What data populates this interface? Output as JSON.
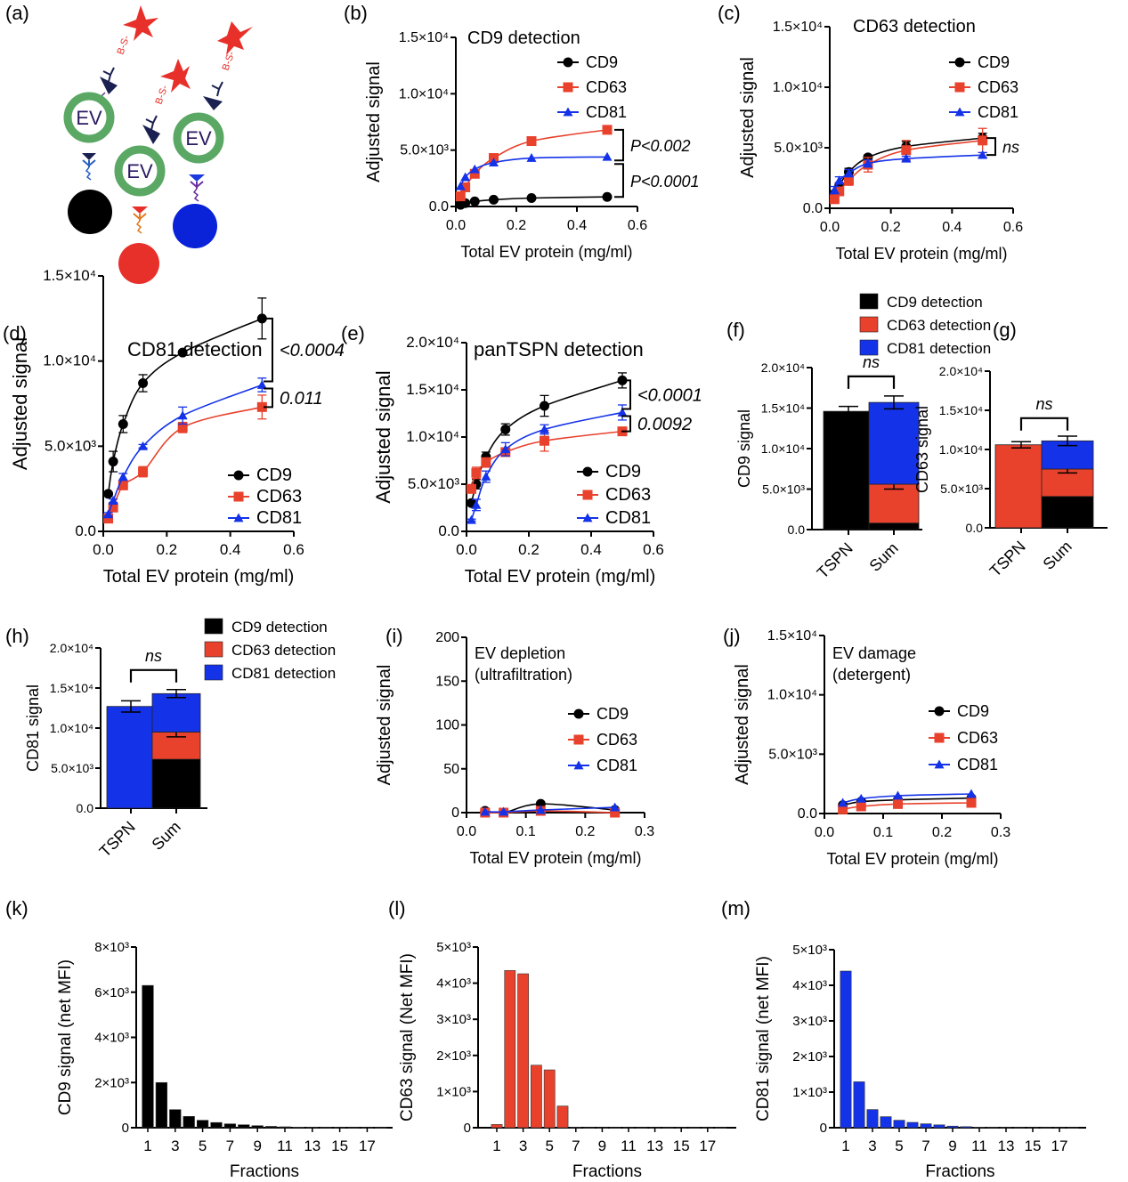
{
  "colors": {
    "cd9": "#000000",
    "cd63": "#e8412c",
    "cd81": "#1432e8",
    "ev_ring": "#5aa864",
    "star": "#e8302a",
    "antibody": "#1a2050"
  },
  "panel_labels": [
    "(a)",
    "(b)",
    "(c)",
    "(d)",
    "(e)",
    "(f)",
    "(g)",
    "(h)",
    "(i)",
    "(j)",
    "(k)",
    "(l)",
    "(m)"
  ],
  "schematic": {
    "ev_label": "EV",
    "linker_label": "B-S-",
    "bead_colors": [
      "#000000",
      "#e8302a",
      "#0a22d8"
    ]
  },
  "chart_data": [
    {
      "id": "b",
      "type": "line",
      "title": "CD9 detection",
      "xlabel": "Total EV protein (mg/ml)",
      "ylabel": "Adjusted signal",
      "xlim": [
        0,
        0.6
      ],
      "ylim": [
        0,
        15000
      ],
      "xticks": [
        "0.0",
        "0.2",
        "0.4",
        "0.6"
      ],
      "yticks": [
        "0.0",
        "5.0×10³",
        "1.0×10⁴",
        "1.5×10⁴"
      ],
      "legend": [
        "CD9",
        "CD63",
        "CD81"
      ],
      "legend_position": "top-right",
      "annotations": [
        "P<0.002",
        "P<0.0001"
      ],
      "series": [
        {
          "name": "CD9",
          "x": [
            0.0156,
            0.03125,
            0.0625,
            0.125,
            0.25,
            0.5
          ],
          "y": [
            150,
            300,
            450,
            600,
            750,
            850
          ]
        },
        {
          "name": "CD63",
          "x": [
            0.0156,
            0.03125,
            0.0625,
            0.125,
            0.25,
            0.5
          ],
          "y": [
            900,
            1700,
            2900,
            4300,
            5800,
            6800
          ]
        },
        {
          "name": "CD81",
          "x": [
            0.0156,
            0.03125,
            0.0625,
            0.125,
            0.25,
            0.5
          ],
          "y": [
            1800,
            2600,
            3300,
            3900,
            4300,
            4400
          ]
        }
      ]
    },
    {
      "id": "c",
      "type": "line",
      "title": "CD63 detection",
      "xlabel": "Total EV protein (mg/ml)",
      "ylabel": "Adjusted signal",
      "xlim": [
        0,
        0.6
      ],
      "ylim": [
        0,
        15000
      ],
      "xticks": [
        "0.0",
        "0.2",
        "0.4",
        "0.6"
      ],
      "yticks": [
        "0.0",
        "5.0×10³",
        "1.0×10⁴",
        "1.5×10⁴"
      ],
      "legend": [
        "CD9",
        "CD63",
        "CD81"
      ],
      "legend_position": "top-right",
      "annotations": [
        "ns"
      ],
      "series": [
        {
          "name": "CD9",
          "x": [
            0.0156,
            0.03125,
            0.0625,
            0.125,
            0.25,
            0.5
          ],
          "y": [
            1200,
            1900,
            3000,
            4200,
            5100,
            5800
          ],
          "err": [
            200,
            200,
            300,
            200,
            400,
            400
          ]
        },
        {
          "name": "CD63",
          "x": [
            0.0156,
            0.03125,
            0.0625,
            0.125,
            0.25,
            0.5
          ],
          "y": [
            750,
            1400,
            2300,
            3600,
            4800,
            5600
          ],
          "err": [
            300,
            300,
            400,
            600,
            800,
            1000
          ]
        },
        {
          "name": "CD81",
          "x": [
            0.0156,
            0.03125,
            0.0625,
            0.125,
            0.25,
            0.5
          ],
          "y": [
            1500,
            2300,
            2900,
            3700,
            4100,
            4400
          ],
          "err": [
            300,
            300,
            300,
            300,
            200,
            200
          ]
        }
      ]
    },
    {
      "id": "d",
      "type": "line",
      "title": "CD81 detection",
      "xlabel": "Total EV protein (mg/ml)",
      "ylabel": "Adjusted signal",
      "xlim": [
        0,
        0.6
      ],
      "ylim": [
        0,
        15000
      ],
      "xticks": [
        "0.0",
        "0.2",
        "0.4",
        "0.6"
      ],
      "yticks": [
        "0.0",
        "5.0×10³",
        "1.0×10⁴",
        "1.5×10⁴"
      ],
      "legend": [
        "CD9",
        "CD63",
        "CD81"
      ],
      "legend_position": "bottom-right",
      "annotations": [
        "<0.0004",
        "0.011"
      ],
      "series": [
        {
          "name": "CD9",
          "x": [
            0.0156,
            0.03125,
            0.0625,
            0.125,
            0.25,
            0.5
          ],
          "y": [
            2200,
            4100,
            6300,
            8700,
            10500,
            12500
          ],
          "err": [
            100,
            600,
            500,
            500,
            100,
            1200
          ]
        },
        {
          "name": "CD63",
          "x": [
            0.0156,
            0.03125,
            0.0625,
            0.125,
            0.25,
            0.5
          ],
          "y": [
            750,
            1400,
            2700,
            3500,
            6100,
            7300
          ],
          "err": [
            100,
            200,
            200,
            300,
            300,
            700
          ]
        },
        {
          "name": "CD81",
          "x": [
            0.0156,
            0.03125,
            0.0625,
            0.125,
            0.25,
            0.5
          ],
          "y": [
            1000,
            1800,
            3200,
            5000,
            6800,
            8600
          ],
          "err": [
            100,
            100,
            200,
            100,
            500,
            400
          ]
        }
      ]
    },
    {
      "id": "e",
      "type": "line",
      "title": "panTSPN detection",
      "xlabel": "Total EV protein (mg/ml)",
      "ylabel": "Adjusted signal",
      "xlim": [
        0,
        0.6
      ],
      "ylim": [
        0,
        20000
      ],
      "xticks": [
        "0.0",
        "0.2",
        "0.4",
        "0.6"
      ],
      "yticks": [
        "0.0",
        "5.0×10³",
        "1.0×10⁴",
        "1.5×10⁴",
        "2.0×10⁴"
      ],
      "legend": [
        "CD9",
        "CD63",
        "CD81"
      ],
      "legend_position": "bottom-right",
      "annotations": [
        "<0.0001",
        "0.0092"
      ],
      "series": [
        {
          "name": "CD9",
          "x": [
            0.0156,
            0.03125,
            0.0625,
            0.125,
            0.25,
            0.5
          ],
          "y": [
            3000,
            5000,
            7900,
            10800,
            13300,
            16000
          ],
          "err": [
            200,
            500,
            500,
            600,
            1100,
            800
          ]
        },
        {
          "name": "CD63",
          "x": [
            0.0156,
            0.03125,
            0.0625,
            0.125,
            0.25,
            0.5
          ],
          "y": [
            4500,
            6200,
            7300,
            8400,
            9600,
            10600
          ],
          "err": [
            200,
            600,
            500,
            300,
            1100,
            200
          ]
        },
        {
          "name": "CD81",
          "x": [
            0.0156,
            0.03125,
            0.0625,
            0.125,
            0.25,
            0.5
          ],
          "y": [
            1200,
            2800,
            5800,
            8700,
            10800,
            12600
          ],
          "err": [
            100,
            600,
            600,
            700,
            500,
            800
          ]
        }
      ]
    },
    {
      "id": "f",
      "type": "bar",
      "stacked": true,
      "ylabel": "CD9 signal",
      "ylim": [
        0,
        20000
      ],
      "yticks": [
        "0.0",
        "5.0×10³",
        "1.0×10⁴",
        "1.5×10⁴",
        "2.0×10⁴"
      ],
      "categories": [
        "TSPN",
        "Sum"
      ],
      "annotation": "ns",
      "legend": [
        "CD9 detection",
        "CD63 detection",
        "CD81 detection"
      ],
      "legend_position": "top",
      "bars": [
        {
          "category": "TSPN",
          "segments": [
            {
              "name": "CD9 detection",
              "value": 14600,
              "err": 600
            }
          ]
        },
        {
          "category": "Sum",
          "segments": [
            {
              "name": "CD9 detection",
              "value": 800
            },
            {
              "name": "CD63 detection",
              "value": 4800,
              "err": 600
            },
            {
              "name": "CD81 detection",
              "value": 10100,
              "err": 800
            }
          ]
        }
      ]
    },
    {
      "id": "g",
      "type": "bar",
      "stacked": true,
      "ylabel": "CD63 signal",
      "ylim": [
        0,
        20000
      ],
      "yticks": [
        "0.0",
        "5.0×10³",
        "1.0×10⁴",
        "1.5×10⁴",
        "2.0×10⁴"
      ],
      "categories": [
        "TSPN",
        "Sum"
      ],
      "annotation": "ns",
      "bars": [
        {
          "category": "TSPN",
          "segments": [
            {
              "name": "CD63 detection",
              "value": 10600,
              "err": 400
            }
          ]
        },
        {
          "category": "Sum",
          "segments": [
            {
              "name": "CD9 detection",
              "value": 4000
            },
            {
              "name": "CD63 detection",
              "value": 3500,
              "err": 500
            },
            {
              "name": "CD81 detection",
              "value": 3600,
              "err": 600
            }
          ]
        }
      ]
    },
    {
      "id": "h",
      "type": "bar",
      "stacked": true,
      "ylabel": "CD81 signal",
      "ylim": [
        0,
        20000
      ],
      "yticks": [
        "0.0",
        "5.0×10³",
        "1.0×10⁴",
        "1.5×10⁴",
        "2.0×10⁴"
      ],
      "categories": [
        "TSPN",
        "Sum"
      ],
      "annotation": "ns",
      "legend": [
        "CD9 detection",
        "CD63 detection",
        "CD81 detection"
      ],
      "legend_position": "top-right",
      "bars": [
        {
          "category": "TSPN",
          "segments": [
            {
              "name": "CD81 detection",
              "value": 12700,
              "err": 700
            }
          ]
        },
        {
          "category": "Sum",
          "segments": [
            {
              "name": "CD9 detection",
              "value": 6100,
              "err": 700
            },
            {
              "name": "CD63 detection",
              "value": 3400,
              "err": 600
            },
            {
              "name": "CD81 detection",
              "value": 4800,
              "err": 500
            }
          ]
        }
      ]
    },
    {
      "id": "i",
      "type": "line",
      "title": "EV depletion\n(ultrafiltration)",
      "title_lines": [
        "EV depletion",
        "(ultrafiltration)"
      ],
      "xlabel": "Total EV protein (mg/ml)",
      "ylabel": "Adjusted signal",
      "xlim": [
        0,
        0.3
      ],
      "ylim": [
        0,
        200
      ],
      "xticks": [
        "0.0",
        "0.1",
        "0.2",
        "0.3"
      ],
      "yticks": [
        "0",
        "50",
        "100",
        "150",
        "200"
      ],
      "legend": [
        "CD9",
        "CD63",
        "CD81"
      ],
      "legend_position": "right",
      "series": [
        {
          "name": "CD9",
          "x": [
            0.03125,
            0.0625,
            0.125,
            0.25
          ],
          "y": [
            2,
            0,
            10,
            3
          ]
        },
        {
          "name": "CD63",
          "x": [
            0.03125,
            0.0625,
            0.125,
            0.25
          ],
          "y": [
            0,
            0,
            2,
            0
          ]
        },
        {
          "name": "CD81",
          "x": [
            0.03125,
            0.0625,
            0.125,
            0.25
          ],
          "y": [
            1,
            1,
            3,
            6
          ]
        }
      ]
    },
    {
      "id": "j",
      "type": "line",
      "title": "EV damage\n(detergent)",
      "title_lines": [
        "EV damage",
        "(detergent)"
      ],
      "xlabel": "Total EV protein (mg/ml)",
      "ylabel": "Adjusted signal",
      "xlim": [
        0,
        0.3
      ],
      "ylim": [
        0,
        15000
      ],
      "xticks": [
        "0.0",
        "0.1",
        "0.2",
        "0.3"
      ],
      "yticks": [
        "0.0",
        "5.0×10³",
        "1.0×10⁴",
        "1.5×10⁴"
      ],
      "legend": [
        "CD9",
        "CD63",
        "CD81"
      ],
      "legend_position": "right",
      "series": [
        {
          "name": "CD9",
          "x": [
            0.03125,
            0.0625,
            0.125,
            0.25
          ],
          "y": [
            700,
            1000,
            1150,
            1300
          ]
        },
        {
          "name": "CD63",
          "x": [
            0.03125,
            0.0625,
            0.125,
            0.25
          ],
          "y": [
            350,
            600,
            800,
            900
          ]
        },
        {
          "name": "CD81",
          "x": [
            0.03125,
            0.0625,
            0.125,
            0.25
          ],
          "y": [
            900,
            1250,
            1500,
            1650
          ]
        }
      ]
    },
    {
      "id": "k",
      "type": "bar",
      "color": "#000000",
      "xlabel": "Fractions",
      "ylabel": "CD9 signal (net MFI)",
      "ylim": [
        0,
        8000
      ],
      "yticks": [
        "0",
        "2×10³",
        "4×10³",
        "6×10³",
        "8×10³"
      ],
      "xtick_labels": [
        "1",
        "3",
        "5",
        "7",
        "9",
        "11",
        "13",
        "15",
        "17"
      ],
      "categories": [
        1,
        2,
        3,
        4,
        5,
        6,
        7,
        8,
        9,
        10,
        11,
        12,
        13,
        14,
        15,
        16,
        17,
        18
      ],
      "values": [
        6300,
        2000,
        800,
        500,
        330,
        230,
        170,
        130,
        90,
        60,
        40,
        25,
        15,
        10,
        8,
        5,
        4,
        3
      ]
    },
    {
      "id": "l",
      "type": "bar",
      "color": "#e8412c",
      "xlabel": "Fractions",
      "ylabel": "CD63 signal (Net MFI)",
      "ylim": [
        0,
        5000
      ],
      "yticks": [
        "0",
        "1×10³",
        "2×10³",
        "3×10³",
        "4×10³",
        "5×10³"
      ],
      "xtick_labels": [
        "1",
        "3",
        "5",
        "7",
        "9",
        "11",
        "13",
        "15",
        "17"
      ],
      "categories": [
        1,
        2,
        3,
        4,
        5,
        6,
        7,
        8,
        9,
        10,
        11,
        12,
        13,
        14,
        15,
        16,
        17,
        18
      ],
      "values": [
        90,
        4350,
        4260,
        1730,
        1600,
        600,
        10,
        0,
        0,
        0,
        0,
        0,
        0,
        0,
        0,
        0,
        0,
        0
      ]
    },
    {
      "id": "m",
      "type": "bar",
      "color": "#1432e8",
      "xlabel": "Fractions",
      "ylabel": "CD81 signal (net MFI)",
      "ylim": [
        0,
        5000
      ],
      "yticks": [
        "0",
        "1×10³",
        "2×10³",
        "3×10³",
        "4×10³",
        "5×10³"
      ],
      "xtick_labels": [
        "1",
        "3",
        "5",
        "7",
        "9",
        "11",
        "13",
        "15",
        "17"
      ],
      "categories": [
        1,
        2,
        3,
        4,
        5,
        6,
        7,
        8,
        9,
        10,
        11,
        12,
        13,
        14,
        15,
        16,
        17,
        18
      ],
      "values": [
        4400,
        1290,
        510,
        310,
        210,
        150,
        110,
        80,
        45,
        30,
        15,
        10,
        6,
        4,
        3,
        2,
        2,
        1
      ]
    }
  ]
}
